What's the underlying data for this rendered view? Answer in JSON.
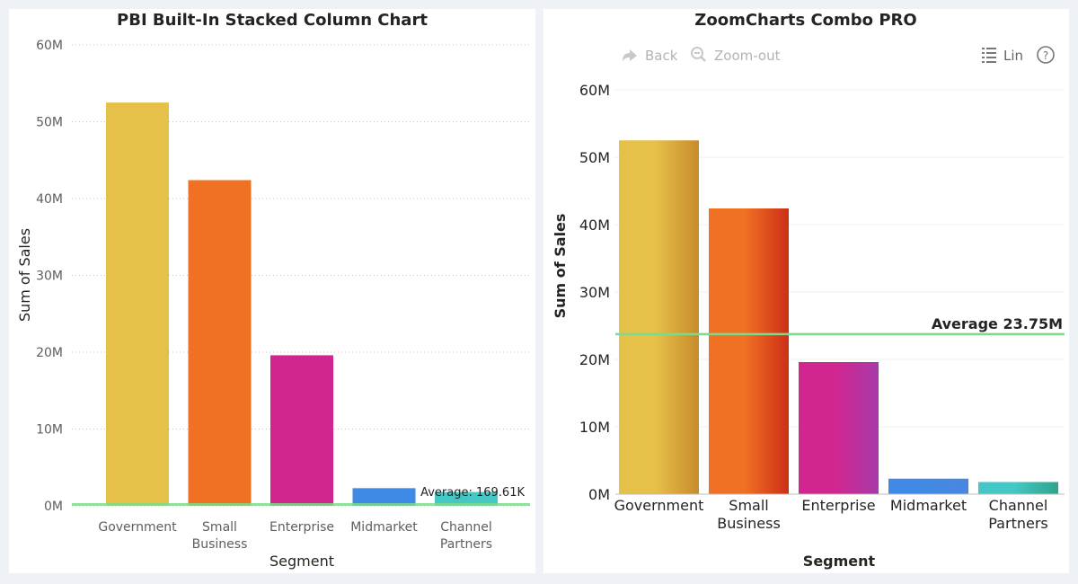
{
  "left_chart": {
    "title": "PBI Built-In Stacked Column Chart",
    "xlabel": "Segment",
    "ylabel": "Sum of Sales",
    "average_label": "Average: 169.61K"
  },
  "right_chart": {
    "title": "ZoomCharts Combo PRO",
    "xlabel": "Segment",
    "ylabel": "Sum of Sales",
    "average_label": "Average 23.75M",
    "toolbar": {
      "back_label": "Back",
      "zoom_out_label": "Zoom-out",
      "scale_label": "Lin"
    }
  },
  "colors": {
    "government": "#e6c14a",
    "small_business": "#f07024",
    "enterprise": "#d1268f",
    "midmarket": "#3f8ae4",
    "channel_partners": "#44c7c5",
    "average_line": "#7fdb8c"
  },
  "chart_data": [
    {
      "type": "bar",
      "title": "PBI Built-In Stacked Column Chart",
      "categories": [
        "Government",
        "Small Business",
        "Enterprise",
        "Midmarket",
        "Channel Partners"
      ],
      "category_labels": [
        [
          "Government"
        ],
        [
          "Small",
          "Business"
        ],
        [
          "Enterprise"
        ],
        [
          "Midmarket"
        ],
        [
          "Channel",
          "Partners"
        ]
      ],
      "values": [
        52.5,
        42.4,
        19.6,
        2.3,
        1.8
      ],
      "unit": "M",
      "ylim": [
        0,
        60
      ],
      "yticks": [
        "0M",
        "10M",
        "20M",
        "30M",
        "40M",
        "50M",
        "60M"
      ],
      "average_value": 0.16961,
      "xlabel": "Segment",
      "ylabel": "Sum of Sales",
      "grid": true
    },
    {
      "type": "bar",
      "title": "ZoomCharts Combo PRO",
      "categories": [
        "Government",
        "Small Business",
        "Enterprise",
        "Midmarket",
        "Channel Partners"
      ],
      "category_labels": [
        [
          "Government"
        ],
        [
          "Small",
          "Business"
        ],
        [
          "Enterprise"
        ],
        [
          "Midmarket"
        ],
        [
          "Channel",
          "Partners"
        ]
      ],
      "values": [
        52.5,
        42.4,
        19.6,
        2.3,
        1.8
      ],
      "unit": "M",
      "ylim": [
        0,
        60
      ],
      "yticks": [
        "0M",
        "10M",
        "20M",
        "30M",
        "40M",
        "50M",
        "60M"
      ],
      "average_value": 23.75,
      "xlabel": "Segment",
      "ylabel": "Sum of Sales",
      "grid": true
    }
  ]
}
